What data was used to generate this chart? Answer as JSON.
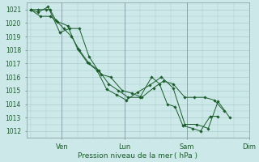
{
  "xlabel": "Pression niveau de la mer ( hPa )",
  "bg_color": "#cce8e8",
  "grid_color": "#aacccc",
  "line_color": "#1a5c2a",
  "marker_color": "#1a5c2a",
  "ylim": [
    1011.5,
    1021.5
  ],
  "yticks": [
    1012,
    1013,
    1014,
    1015,
    1016,
    1017,
    1018,
    1019,
    1020,
    1021
  ],
  "xtick_labels": [
    "Ven",
    "Lun",
    "Sam",
    "Dim"
  ],
  "xtick_positions": [
    16,
    48,
    80,
    112
  ],
  "series1_x": [
    0,
    4,
    8,
    10,
    13,
    17,
    21,
    25,
    30,
    35,
    40,
    45,
    50,
    56,
    62,
    66,
    70,
    74,
    78,
    83,
    87,
    92,
    96
  ],
  "series1_y": [
    1021,
    1021,
    1021,
    1021,
    1020.2,
    1019.6,
    1019,
    1018,
    1017,
    1016.5,
    1015.5,
    1015,
    1014.5,
    1014.5,
    1016,
    1015.5,
    1014,
    1013.8,
    1012.4,
    1012.2,
    1012,
    1013.1,
    1013.1
  ],
  "series2_x": [
    0,
    4,
    9,
    15,
    20,
    25,
    30,
    36,
    41,
    47,
    52,
    57,
    63,
    68,
    73,
    79,
    84,
    89,
    94,
    99
  ],
  "series2_y": [
    1021,
    1020.8,
    1021.2,
    1019.3,
    1019.6,
    1019.6,
    1017.5,
    1016.2,
    1016,
    1015,
    1014.8,
    1014.5,
    1015.2,
    1015.7,
    1015.5,
    1014.5,
    1014.5,
    1014.5,
    1014.3,
    1013.5
  ],
  "series3_x": [
    0,
    5,
    10,
    14,
    19,
    24,
    29,
    34,
    39,
    44,
    49,
    55,
    61,
    67,
    73,
    79,
    85,
    91,
    96,
    102
  ],
  "series3_y": [
    1021,
    1020.5,
    1020.5,
    1020.1,
    1019.8,
    1018.1,
    1017.1,
    1016.5,
    1015.1,
    1014.7,
    1014.3,
    1014.9,
    1015.4,
    1016,
    1015.2,
    1012.5,
    1012.5,
    1012.2,
    1014.2,
    1013
  ],
  "xlim": [
    -2,
    108
  ],
  "day_lines": [
    16,
    48,
    80,
    112
  ],
  "day_line_color": "#8899aa",
  "marker_size": 1.8,
  "line_width": 0.7,
  "ytick_fontsize": 5.5,
  "xtick_fontsize": 6.0,
  "xlabel_fontsize": 6.5
}
